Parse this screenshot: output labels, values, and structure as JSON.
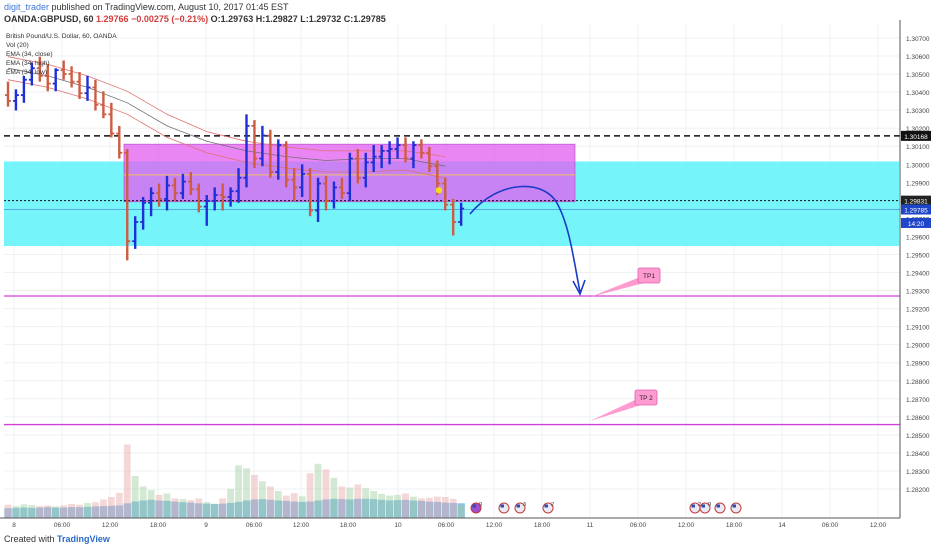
{
  "header": {
    "author": "digit_trader",
    "published": " published on TradingView.com, August 10, 2017 01:45 EST",
    "symbol": "OANDA:GBPUSD, 60",
    "last": "1.29766",
    "change": "−0.00275 (−0.21%)",
    "ohlc": "O:1.29763 H:1.29827 L:1.29732 C:1.29785"
  },
  "legend": [
    "British Pound/U.S. Dollar, 60, OANDA",
    "Vol (20)",
    "EMA (34, close)",
    "EMA (34, high)",
    "EMA (34, low)"
  ],
  "footer": {
    "created": "Created with",
    "brand": "TradingView"
  },
  "colors": {
    "bull": "#1f2fd8",
    "bear": "#cd5c42",
    "cyan_zone": "#66f3f8",
    "magenta_zone": "#e35ef0",
    "level_line": "#d040d8",
    "annotation": "#ff9bd0",
    "arrow": "#1a3cc8"
  },
  "chart_data": {
    "type": "ohlc",
    "ylim": [
      1.2818,
      1.3075
    ],
    "yticks": [
      "1.30700",
      "1.30600",
      "1.30500",
      "1.30400",
      "1.30300",
      "1.30200",
      "1.30100",
      "1.30000",
      "1.29900",
      "1.29800",
      "1.29700",
      "1.29600",
      "1.29500",
      "1.29400",
      "1.29300",
      "1.29200",
      "1.29100",
      "1.29000",
      "1.28900",
      "1.28800",
      "1.28700",
      "1.28600",
      "1.28500",
      "1.28400",
      "1.28300",
      "1.28200"
    ],
    "xticks": [
      "8",
      "06:00",
      "12:00",
      "18:00",
      "9",
      "06:00",
      "12:00",
      "18:00",
      "10",
      "06:00",
      "12:00",
      "18:00",
      "11",
      "06:00",
      "12:00",
      "18:00",
      "14",
      "06:00",
      "12:00"
    ],
    "price_labels": [
      {
        "text": "1.30168",
        "price": 1.30168
      },
      {
        "text": "1.29831",
        "price": 1.29831
      },
      {
        "text": "1.29785",
        "price": 1.29785
      },
      {
        "text": "14:20",
        "price": 1.29715
      }
    ],
    "zones": [
      {
        "color": "cyan",
        "top": 1.30035,
        "bottom": 1.29595
      },
      {
        "color": "magenta",
        "top": 1.30125,
        "bottom": 1.29825
      }
    ],
    "levels": [
      {
        "price": 1.30168,
        "style": "dashed",
        "color": "black"
      },
      {
        "price": 1.29831,
        "style": "dotted",
        "color": "black"
      },
      {
        "price": 1.29335,
        "style": "solid",
        "color": "magenta"
      },
      {
        "price": 1.28666,
        "style": "solid",
        "color": "magenta"
      }
    ],
    "annotations": [
      {
        "text": "TP1",
        "price": 1.29465
      },
      {
        "text": "TP 2",
        "price": 1.28785
      }
    ],
    "candles": [
      [
        1.3038,
        1.3045,
        1.3032,
        1.3035
      ],
      [
        1.3035,
        1.3041,
        1.303,
        1.3038
      ],
      [
        1.3038,
        1.3048,
        1.3034,
        1.3046
      ],
      [
        1.3046,
        1.3055,
        1.3043,
        1.3052
      ],
      [
        1.3052,
        1.3058,
        1.3045,
        1.3048
      ],
      [
        1.3048,
        1.3054,
        1.304,
        1.3044
      ],
      [
        1.3044,
        1.3052,
        1.304,
        1.3051
      ],
      [
        1.3051,
        1.3056,
        1.3046,
        1.3049
      ],
      [
        1.3049,
        1.3053,
        1.3042,
        1.3045
      ],
      [
        1.3045,
        1.305,
        1.3036,
        1.3039
      ],
      [
        1.3039,
        1.3048,
        1.3035,
        1.3042
      ],
      [
        1.3042,
        1.3046,
        1.303,
        1.3033
      ],
      [
        1.3033,
        1.304,
        1.3026,
        1.3028
      ],
      [
        1.3028,
        1.3034,
        1.3016,
        1.3018
      ],
      [
        1.3018,
        1.3022,
        1.3005,
        1.3008
      ],
      [
        1.3008,
        1.301,
        1.2952,
        1.2962
      ],
      [
        1.2962,
        1.2975,
        1.2958,
        1.2972
      ],
      [
        1.2972,
        1.2985,
        1.2968,
        1.2982
      ],
      [
        1.2982,
        1.299,
        1.2975,
        1.2987
      ],
      [
        1.2987,
        1.2992,
        1.298,
        1.2984
      ],
      [
        1.2984,
        1.2996,
        1.2978,
        1.2991
      ],
      [
        1.2991,
        1.2995,
        1.2983,
        1.2987
      ],
      [
        1.2987,
        1.2997,
        1.2984,
        1.2993
      ],
      [
        1.2993,
        1.2998,
        1.2986,
        1.2989
      ],
      [
        1.2989,
        1.2992,
        1.2977,
        1.298
      ],
      [
        1.298,
        1.2986,
        1.297,
        1.2983
      ],
      [
        1.2983,
        1.299,
        1.2978,
        1.2986
      ],
      [
        1.2986,
        1.2992,
        1.2978,
        1.2985
      ],
      [
        1.2985,
        1.299,
        1.298,
        1.2988
      ],
      [
        1.2988,
        1.3,
        1.2982,
        1.2995
      ],
      [
        1.2995,
        1.3028,
        1.299,
        1.3022
      ],
      [
        1.3022,
        1.3025,
        1.3,
        1.3005
      ],
      [
        1.3005,
        1.3022,
        1.3001,
        1.3017
      ],
      [
        1.3017,
        1.302,
        1.2995,
        1.2998
      ],
      [
        1.2998,
        1.3015,
        1.2994,
        1.3012
      ],
      [
        1.3012,
        1.3014,
        1.299,
        1.2994
      ],
      [
        1.2994,
        1.3,
        1.2983,
        1.299
      ],
      [
        1.299,
        1.3002,
        1.2985,
        1.2997
      ],
      [
        1.2997,
        1.3,
        1.2975,
        1.2978
      ],
      [
        1.2978,
        1.2995,
        1.2972,
        1.2992
      ],
      [
        1.2992,
        1.2996,
        1.2978,
        1.2983
      ],
      [
        1.2983,
        1.2993,
        1.2979,
        1.299
      ],
      [
        1.299,
        1.2995,
        1.2984,
        1.2987
      ],
      [
        1.2987,
        1.3008,
        1.2983,
        1.3005
      ],
      [
        1.3005,
        1.301,
        1.2992,
        1.2995
      ],
      [
        1.2995,
        1.3008,
        1.299,
        1.3003
      ],
      [
        1.3003,
        1.3012,
        1.2998,
        1.3006
      ],
      [
        1.3006,
        1.3012,
        1.3,
        1.3009
      ],
      [
        1.3009,
        1.3014,
        1.3002,
        1.301
      ],
      [
        1.301,
        1.3016,
        1.3005,
        1.3012
      ],
      [
        1.3012,
        1.3016,
        1.3003,
        1.3005
      ],
      [
        1.3005,
        1.3014,
        1.3,
        1.3012
      ],
      [
        1.3012,
        1.3015,
        1.3005,
        1.3008
      ],
      [
        1.3008,
        1.3011,
        1.2998,
        1.3001
      ],
      [
        1.3001,
        1.3004,
        1.2986,
        1.2992
      ],
      [
        1.2992,
        1.2995,
        1.2978,
        1.2981
      ],
      [
        1.2981,
        1.2984,
        1.2965,
        1.2972
      ],
      [
        1.2972,
        1.2982,
        1.297,
        1.2979
      ]
    ],
    "volume": [
      {
        "ma": 0.28,
        "vol": 0.38
      },
      {
        "ma": 0.29,
        "vol": 0.34
      },
      {
        "ma": 0.3,
        "vol": 0.39
      },
      {
        "ma": 0.29,
        "vol": 0.37
      },
      {
        "ma": 0.3,
        "vol": 0.34
      },
      {
        "ma": 0.31,
        "vol": 0.36
      },
      {
        "ma": 0.3,
        "vol": 0.33
      },
      {
        "ma": 0.3,
        "vol": 0.36
      },
      {
        "ma": 0.31,
        "vol": 0.4
      },
      {
        "ma": 0.31,
        "vol": 0.38
      },
      {
        "ma": 0.32,
        "vol": 0.43
      },
      {
        "ma": 0.33,
        "vol": 0.45
      },
      {
        "ma": 0.34,
        "vol": 0.53
      },
      {
        "ma": 0.35,
        "vol": 0.6
      },
      {
        "ma": 0.36,
        "vol": 0.72
      },
      {
        "ma": 0.42,
        "vol": 2.1
      },
      {
        "ma": 0.47,
        "vol": 1.2
      },
      {
        "ma": 0.5,
        "vol": 0.9
      },
      {
        "ma": 0.52,
        "vol": 0.8
      },
      {
        "ma": 0.5,
        "vol": 0.66
      },
      {
        "ma": 0.49,
        "vol": 0.7
      },
      {
        "ma": 0.47,
        "vol": 0.56
      },
      {
        "ma": 0.45,
        "vol": 0.54
      },
      {
        "ma": 0.44,
        "vol": 0.51
      },
      {
        "ma": 0.42,
        "vol": 0.56
      },
      {
        "ma": 0.41,
        "vol": 0.45
      },
      {
        "ma": 0.4,
        "vol": 0.41
      },
      {
        "ma": 0.41,
        "vol": 0.56
      },
      {
        "ma": 0.43,
        "vol": 0.83
      },
      {
        "ma": 0.46,
        "vol": 1.5
      },
      {
        "ma": 0.5,
        "vol": 1.42
      },
      {
        "ma": 0.53,
        "vol": 1.23
      },
      {
        "ma": 0.54,
        "vol": 1.05
      },
      {
        "ma": 0.52,
        "vol": 0.9
      },
      {
        "ma": 0.5,
        "vol": 0.77
      },
      {
        "ma": 0.49,
        "vol": 0.64
      },
      {
        "ma": 0.47,
        "vol": 0.71
      },
      {
        "ma": 0.46,
        "vol": 0.62
      },
      {
        "ma": 0.47,
        "vol": 1.28
      },
      {
        "ma": 0.5,
        "vol": 1.55
      },
      {
        "ma": 0.53,
        "vol": 1.39
      },
      {
        "ma": 0.55,
        "vol": 1.15
      },
      {
        "ma": 0.54,
        "vol": 0.9
      },
      {
        "ma": 0.53,
        "vol": 0.87
      },
      {
        "ma": 0.55,
        "vol": 0.96
      },
      {
        "ma": 0.55,
        "vol": 0.85
      },
      {
        "ma": 0.54,
        "vol": 0.77
      },
      {
        "ma": 0.52,
        "vol": 0.69
      },
      {
        "ma": 0.5,
        "vol": 0.64
      },
      {
        "ma": 0.51,
        "vol": 0.66
      },
      {
        "ma": 0.52,
        "vol": 0.7
      },
      {
        "ma": 0.5,
        "vol": 0.61
      },
      {
        "ma": 0.49,
        "vol": 0.56
      },
      {
        "ma": 0.47,
        "vol": 0.58
      },
      {
        "ma": 0.46,
        "vol": 0.61
      },
      {
        "ma": 0.44,
        "vol": 0.6
      },
      {
        "ma": 0.43,
        "vol": 0.55
      },
      {
        "ma": 0.42,
        "vol": 0.38
      }
    ],
    "emas": [
      {
        "name": "EMA (34, high)",
        "color": "#e07070",
        "points": [
          [
            1.3058,
            0
          ],
          [
            1.3054,
            5
          ],
          [
            1.3048,
            10
          ],
          [
            1.304,
            15
          ],
          [
            1.3028,
            20
          ],
          [
            1.3019,
            25
          ],
          [
            1.3014,
            30
          ],
          [
            1.3011,
            35
          ],
          [
            1.3009,
            40
          ],
          [
            1.3009,
            45
          ],
          [
            1.3009,
            50
          ],
          [
            1.3006,
            55
          ]
        ]
      },
      {
        "name": "EMA (34, close)",
        "color": "#707070",
        "points": [
          [
            1.3052,
            0
          ],
          [
            1.3048,
            5
          ],
          [
            1.3042,
            10
          ],
          [
            1.3034,
            15
          ],
          [
            1.3022,
            20
          ],
          [
            1.3014,
            25
          ],
          [
            1.3009,
            30
          ],
          [
            1.3006,
            35
          ],
          [
            1.3004,
            40
          ],
          [
            1.3005,
            45
          ],
          [
            1.3005,
            50
          ],
          [
            1.3001,
            55
          ]
        ]
      },
      {
        "name": "EMA (34, low)",
        "color": "#e07070",
        "points": [
          [
            1.3046,
            0
          ],
          [
            1.3042,
            5
          ],
          [
            1.3036,
            10
          ],
          [
            1.3028,
            15
          ],
          [
            1.3016,
            20
          ],
          [
            1.3008,
            25
          ],
          [
            1.3003,
            30
          ],
          [
            1.3,
            35
          ],
          [
            1.2998,
            40
          ],
          [
            1.2998,
            45
          ],
          [
            1.2999,
            50
          ],
          [
            1.2995,
            55
          ]
        ]
      }
    ],
    "events": [
      {
        "label": "9",
        "kind": "purple"
      },
      {
        "label": "",
        "kind": "us"
      },
      {
        "label": "3",
        "kind": "us"
      },
      {
        "label": "2",
        "kind": "us"
      },
      {
        "label": "2",
        "kind": "us"
      },
      {
        "label": "9",
        "kind": "us"
      },
      {
        "label": "",
        "kind": "us"
      },
      {
        "label": "",
        "kind": "us"
      }
    ]
  }
}
